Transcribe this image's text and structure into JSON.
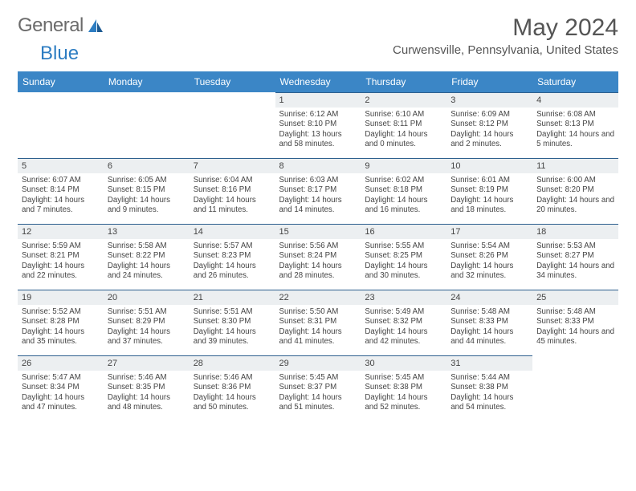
{
  "brand": {
    "word1": "General",
    "word2": "Blue"
  },
  "title": "May 2024",
  "location": "Curwensville, Pennsylvania, United States",
  "colors": {
    "header_bg": "#3b86c6",
    "header_text": "#ffffff",
    "daynum_bg": "#eceff1",
    "daynum_border": "#2d5f8e",
    "text": "#444444",
    "title_text": "#555555",
    "logo_gray": "#6b6b6b",
    "logo_blue": "#2d7dc2"
  },
  "weekdays": [
    "Sunday",
    "Monday",
    "Tuesday",
    "Wednesday",
    "Thursday",
    "Friday",
    "Saturday"
  ],
  "weeks": [
    [
      null,
      null,
      null,
      {
        "n": "1",
        "sr": "6:12 AM",
        "ss": "8:10 PM",
        "dl": "13 hours and 58 minutes."
      },
      {
        "n": "2",
        "sr": "6:10 AM",
        "ss": "8:11 PM",
        "dl": "14 hours and 0 minutes."
      },
      {
        "n": "3",
        "sr": "6:09 AM",
        "ss": "8:12 PM",
        "dl": "14 hours and 2 minutes."
      },
      {
        "n": "4",
        "sr": "6:08 AM",
        "ss": "8:13 PM",
        "dl": "14 hours and 5 minutes."
      }
    ],
    [
      {
        "n": "5",
        "sr": "6:07 AM",
        "ss": "8:14 PM",
        "dl": "14 hours and 7 minutes."
      },
      {
        "n": "6",
        "sr": "6:05 AM",
        "ss": "8:15 PM",
        "dl": "14 hours and 9 minutes."
      },
      {
        "n": "7",
        "sr": "6:04 AM",
        "ss": "8:16 PM",
        "dl": "14 hours and 11 minutes."
      },
      {
        "n": "8",
        "sr": "6:03 AM",
        "ss": "8:17 PM",
        "dl": "14 hours and 14 minutes."
      },
      {
        "n": "9",
        "sr": "6:02 AM",
        "ss": "8:18 PM",
        "dl": "14 hours and 16 minutes."
      },
      {
        "n": "10",
        "sr": "6:01 AM",
        "ss": "8:19 PM",
        "dl": "14 hours and 18 minutes."
      },
      {
        "n": "11",
        "sr": "6:00 AM",
        "ss": "8:20 PM",
        "dl": "14 hours and 20 minutes."
      }
    ],
    [
      {
        "n": "12",
        "sr": "5:59 AM",
        "ss": "8:21 PM",
        "dl": "14 hours and 22 minutes."
      },
      {
        "n": "13",
        "sr": "5:58 AM",
        "ss": "8:22 PM",
        "dl": "14 hours and 24 minutes."
      },
      {
        "n": "14",
        "sr": "5:57 AM",
        "ss": "8:23 PM",
        "dl": "14 hours and 26 minutes."
      },
      {
        "n": "15",
        "sr": "5:56 AM",
        "ss": "8:24 PM",
        "dl": "14 hours and 28 minutes."
      },
      {
        "n": "16",
        "sr": "5:55 AM",
        "ss": "8:25 PM",
        "dl": "14 hours and 30 minutes."
      },
      {
        "n": "17",
        "sr": "5:54 AM",
        "ss": "8:26 PM",
        "dl": "14 hours and 32 minutes."
      },
      {
        "n": "18",
        "sr": "5:53 AM",
        "ss": "8:27 PM",
        "dl": "14 hours and 34 minutes."
      }
    ],
    [
      {
        "n": "19",
        "sr": "5:52 AM",
        "ss": "8:28 PM",
        "dl": "14 hours and 35 minutes."
      },
      {
        "n": "20",
        "sr": "5:51 AM",
        "ss": "8:29 PM",
        "dl": "14 hours and 37 minutes."
      },
      {
        "n": "21",
        "sr": "5:51 AM",
        "ss": "8:30 PM",
        "dl": "14 hours and 39 minutes."
      },
      {
        "n": "22",
        "sr": "5:50 AM",
        "ss": "8:31 PM",
        "dl": "14 hours and 41 minutes."
      },
      {
        "n": "23",
        "sr": "5:49 AM",
        "ss": "8:32 PM",
        "dl": "14 hours and 42 minutes."
      },
      {
        "n": "24",
        "sr": "5:48 AM",
        "ss": "8:33 PM",
        "dl": "14 hours and 44 minutes."
      },
      {
        "n": "25",
        "sr": "5:48 AM",
        "ss": "8:33 PM",
        "dl": "14 hours and 45 minutes."
      }
    ],
    [
      {
        "n": "26",
        "sr": "5:47 AM",
        "ss": "8:34 PM",
        "dl": "14 hours and 47 minutes."
      },
      {
        "n": "27",
        "sr": "5:46 AM",
        "ss": "8:35 PM",
        "dl": "14 hours and 48 minutes."
      },
      {
        "n": "28",
        "sr": "5:46 AM",
        "ss": "8:36 PM",
        "dl": "14 hours and 50 minutes."
      },
      {
        "n": "29",
        "sr": "5:45 AM",
        "ss": "8:37 PM",
        "dl": "14 hours and 51 minutes."
      },
      {
        "n": "30",
        "sr": "5:45 AM",
        "ss": "8:38 PM",
        "dl": "14 hours and 52 minutes."
      },
      {
        "n": "31",
        "sr": "5:44 AM",
        "ss": "8:38 PM",
        "dl": "14 hours and 54 minutes."
      },
      null
    ]
  ],
  "labels": {
    "sunrise": "Sunrise:",
    "sunset": "Sunset:",
    "daylight": "Daylight:"
  }
}
